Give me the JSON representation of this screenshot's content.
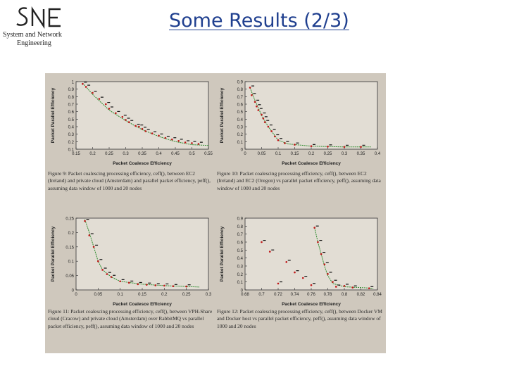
{
  "logo": {
    "mark": "SNE",
    "line1": "System and Network",
    "line2": "Engineering"
  },
  "title": "Some Results (2/3)",
  "colors": {
    "title": "#1f3f8f",
    "scan_bg": "#cfc8bd",
    "fit_line": "#2e8b2e",
    "points_red": "#c01818",
    "points_black": "#111111"
  },
  "chart_data": [
    {
      "type": "scatter",
      "xlabel": "Packet Coalesce Efficiency",
      "ylabel": "Packet Parallel Efficiency",
      "xlim": [
        0.15,
        0.55
      ],
      "ylim": [
        0.1,
        1.0
      ],
      "xticks": [
        "0.15",
        "0.2",
        "0.25",
        "0.3",
        "0.35",
        "0.4",
        "0.45",
        "0.5",
        "0.55"
      ],
      "yticks": [
        "0.1",
        "0.2",
        "0.3",
        "0.4",
        "0.5",
        "0.6",
        "0.7",
        "0.8",
        "0.9",
        "1"
      ],
      "fit": [
        [
          0.17,
          0.98
        ],
        [
          0.2,
          0.83
        ],
        [
          0.25,
          0.62
        ],
        [
          0.3,
          0.48
        ],
        [
          0.35,
          0.36
        ],
        [
          0.4,
          0.27
        ],
        [
          0.45,
          0.2
        ],
        [
          0.5,
          0.16
        ],
        [
          0.55,
          0.15
        ]
      ],
      "points": [
        [
          0.17,
          0.97
        ],
        [
          0.18,
          0.93
        ],
        [
          0.2,
          0.85
        ],
        [
          0.22,
          0.77
        ],
        [
          0.24,
          0.7
        ],
        [
          0.25,
          0.64
        ],
        [
          0.27,
          0.58
        ],
        [
          0.29,
          0.53
        ],
        [
          0.3,
          0.49
        ],
        [
          0.31,
          0.46
        ],
        [
          0.33,
          0.41
        ],
        [
          0.34,
          0.4
        ],
        [
          0.35,
          0.37
        ],
        [
          0.36,
          0.34
        ],
        [
          0.38,
          0.31
        ],
        [
          0.4,
          0.28
        ],
        [
          0.42,
          0.25
        ],
        [
          0.44,
          0.23
        ],
        [
          0.46,
          0.21
        ],
        [
          0.48,
          0.19
        ],
        [
          0.5,
          0.18
        ],
        [
          0.52,
          0.17
        ]
      ],
      "caption_label": "Figure 9:",
      "caption": "Packet coalescing processing efficiency, ceff(), between EC2 (Ireland) and private cloud (Amsterdam) and parallel packet efficiency, peff(), assuming data window of 1000 and 20 nodes"
    },
    {
      "type": "scatter",
      "xlabel": "Packet Coalesce Efficiency",
      "ylabel": "Packet Parallel Efficiency",
      "xlim": [
        0,
        0.4
      ],
      "ylim": [
        0,
        0.9
      ],
      "xticks": [
        "0",
        "0.05",
        "0.1",
        "0.15",
        "0.2",
        "0.25",
        "0.3",
        "0.35",
        "0.4"
      ],
      "yticks": [
        "0",
        "0.1",
        "0.2",
        "0.3",
        "0.4",
        "0.5",
        "0.6",
        "0.7",
        "0.8",
        "0.9"
      ],
      "fit": [
        [
          0.015,
          0.82
        ],
        [
          0.03,
          0.65
        ],
        [
          0.05,
          0.45
        ],
        [
          0.07,
          0.3
        ],
        [
          0.1,
          0.12
        ],
        [
          0.13,
          0.07
        ],
        [
          0.2,
          0.04
        ],
        [
          0.3,
          0.03
        ],
        [
          0.38,
          0.03
        ]
      ],
      "points": [
        [
          0.015,
          0.82
        ],
        [
          0.02,
          0.72
        ],
        [
          0.03,
          0.63
        ],
        [
          0.035,
          0.57
        ],
        [
          0.04,
          0.52
        ],
        [
          0.05,
          0.46
        ],
        [
          0.055,
          0.41
        ],
        [
          0.06,
          0.36
        ],
        [
          0.07,
          0.3
        ],
        [
          0.08,
          0.24
        ],
        [
          0.09,
          0.17
        ],
        [
          0.1,
          0.12
        ],
        [
          0.12,
          0.08
        ],
        [
          0.15,
          0.06
        ],
        [
          0.2,
          0.04
        ],
        [
          0.25,
          0.035
        ],
        [
          0.3,
          0.03
        ],
        [
          0.35,
          0.03
        ]
      ],
      "caption_label": "Figure 10:",
      "caption": "Packet coalescing processing efficiency, ceff(), between EC2 (Ireland) and EC2 (Oregon) vs parallel packet efficiency, peff(), assuming data window of 1000 and 20 nodes"
    },
    {
      "type": "scatter",
      "xlabel": "Packet Coalesce Efficiency",
      "ylabel": "Packet Parallel Efficiency",
      "xlim": [
        0,
        0.3
      ],
      "ylim": [
        0,
        0.25
      ],
      "xticks": [
        "0",
        "0.05",
        "0.1",
        "0.15",
        "0.2",
        "0.25",
        "0.3"
      ],
      "yticks": [
        "0",
        "0.05",
        "0.1",
        "0.15",
        "0.2",
        "0.25"
      ],
      "fit": [
        [
          0.02,
          0.245
        ],
        [
          0.03,
          0.2
        ],
        [
          0.04,
          0.15
        ],
        [
          0.05,
          0.1
        ],
        [
          0.06,
          0.07
        ],
        [
          0.08,
          0.045
        ],
        [
          0.1,
          0.03
        ],
        [
          0.15,
          0.02
        ],
        [
          0.2,
          0.015
        ],
        [
          0.25,
          0.012
        ],
        [
          0.28,
          0.01
        ]
      ],
      "points": [
        [
          0.02,
          0.24
        ],
        [
          0.03,
          0.19
        ],
        [
          0.04,
          0.15
        ],
        [
          0.05,
          0.1
        ],
        [
          0.06,
          0.07
        ],
        [
          0.07,
          0.055
        ],
        [
          0.08,
          0.045
        ],
        [
          0.1,
          0.03
        ],
        [
          0.12,
          0.025
        ],
        [
          0.14,
          0.02
        ],
        [
          0.16,
          0.018
        ],
        [
          0.18,
          0.016
        ],
        [
          0.2,
          0.015
        ],
        [
          0.22,
          0.013
        ],
        [
          0.25,
          0.012
        ]
      ],
      "caption_label": "Figure 11:",
      "caption": "Packet coalescing processing efficiency, ceff(), between VPH-Share cloud (Cracow) and private cloud (Amsterdam) over RabbitMQ vs parallel packet efficiency, peff(), assuming data window of 1000 and 20 nodes"
    },
    {
      "type": "scatter",
      "xlabel": "Packet Coalesce Efficiency",
      "ylabel": "Packet Parallel Efficiency",
      "xlim": [
        0.68,
        0.84
      ],
      "ylim": [
        0,
        0.9
      ],
      "xticks": [
        "0.68",
        "0.7",
        "0.72",
        "0.74",
        "0.76",
        "0.78",
        "0.8",
        "0.82",
        "0.84"
      ],
      "yticks": [
        "0",
        "0.1",
        "0.2",
        "0.3",
        "0.4",
        "0.5",
        "0.6",
        "0.7",
        "0.8",
        "0.9"
      ],
      "fit": [
        [
          0.764,
          0.78
        ],
        [
          0.768,
          0.6
        ],
        [
          0.772,
          0.45
        ],
        [
          0.776,
          0.3
        ],
        [
          0.78,
          0.18
        ],
        [
          0.786,
          0.08
        ],
        [
          0.8,
          0.04
        ],
        [
          0.82,
          0.03
        ],
        [
          0.835,
          0.02
        ]
      ],
      "points": [
        [
          0.764,
          0.78
        ],
        [
          0.768,
          0.6
        ],
        [
          0.772,
          0.45
        ],
        [
          0.776,
          0.32
        ],
        [
          0.78,
          0.2
        ],
        [
          0.786,
          0.1
        ],
        [
          0.8,
          0.05
        ],
        [
          0.7,
          0.6
        ],
        [
          0.71,
          0.48
        ],
        [
          0.73,
          0.35
        ],
        [
          0.74,
          0.22
        ],
        [
          0.75,
          0.15
        ],
        [
          0.72,
          0.08
        ],
        [
          0.76,
          0.06
        ],
        [
          0.79,
          0.04
        ],
        [
          0.81,
          0.03
        ],
        [
          0.83,
          0.02
        ]
      ],
      "caption_label": "Figure 12:",
      "caption": "Packet coalescing processing efficiency, ceff(), between Docker VM and Docker host vs parallel packet efficiency, peff(), assuming data window of 1000 and 20 nodes"
    }
  ]
}
